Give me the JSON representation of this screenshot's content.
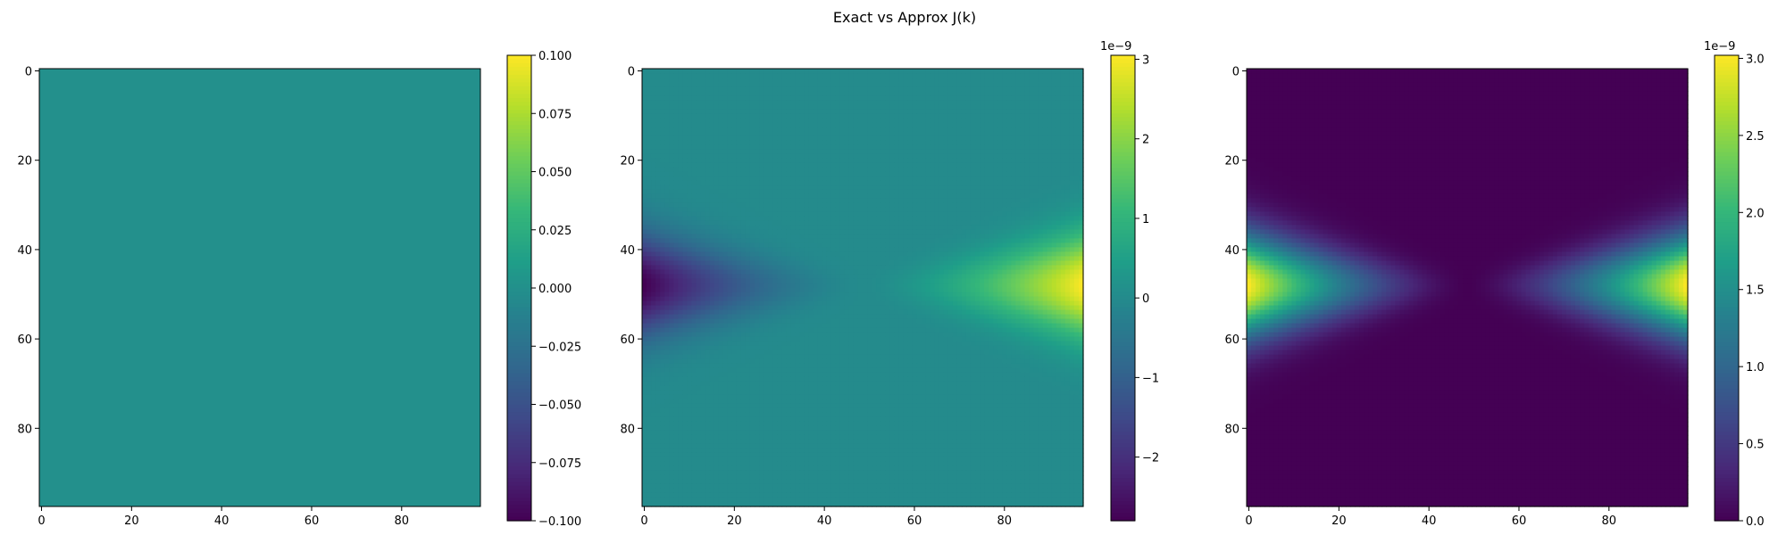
{
  "figure": {
    "suptitle": "Exact vs Approx J(k)"
  },
  "chart_data": [
    {
      "type": "heatmap",
      "grid_size": [
        98,
        98
      ],
      "x_ticks": [
        "0",
        "20",
        "40",
        "60",
        "80"
      ],
      "y_ticks": [
        "0",
        "20",
        "40",
        "60",
        "80"
      ],
      "colormap": "viridis",
      "field": "zero",
      "colorbar": {
        "min": -0.1,
        "max": 0.1,
        "ticks": [
          {
            "value": 0.1,
            "label": "0.100"
          },
          {
            "value": 0.075,
            "label": "0.075"
          },
          {
            "value": 0.05,
            "label": "0.050"
          },
          {
            "value": 0.025,
            "label": "0.025"
          },
          {
            "value": 0.0,
            "label": "0.000"
          },
          {
            "value": -0.025,
            "label": "−0.025"
          },
          {
            "value": -0.05,
            "label": "−0.050"
          },
          {
            "value": -0.075,
            "label": "−0.075"
          },
          {
            "value": -0.1,
            "label": "−0.100"
          }
        ],
        "offset_label": ""
      }
    },
    {
      "type": "heatmap",
      "grid_size": [
        98,
        98
      ],
      "x_ticks": [
        "0",
        "20",
        "40",
        "60",
        "80"
      ],
      "y_ticks": [
        "0",
        "20",
        "40",
        "60",
        "80"
      ],
      "colormap": "viridis",
      "field": "signed",
      "peak_row": 48,
      "peak_value": 3.0,
      "trough_value": -2.8,
      "colorbar": {
        "min": -2.8,
        "max": 3.05,
        "ticks": [
          {
            "value": 3,
            "label": "3"
          },
          {
            "value": 2,
            "label": "2"
          },
          {
            "value": 1,
            "label": "1"
          },
          {
            "value": 0,
            "label": "0"
          },
          {
            "value": -1,
            "label": "−1"
          },
          {
            "value": -2,
            "label": "−2"
          }
        ],
        "offset_label": "1e−9"
      }
    },
    {
      "type": "heatmap",
      "grid_size": [
        98,
        98
      ],
      "x_ticks": [
        "0",
        "20",
        "40",
        "60",
        "80"
      ],
      "y_ticks": [
        "0",
        "20",
        "40",
        "60",
        "80"
      ],
      "colormap": "viridis",
      "field": "absolute",
      "peak_row": 48,
      "peak_value": 3.0,
      "colorbar": {
        "min": 0,
        "max": 3.02,
        "ticks": [
          {
            "value": 3.0,
            "label": "3.0"
          },
          {
            "value": 2.5,
            "label": "2.5"
          },
          {
            "value": 2.0,
            "label": "2.0"
          },
          {
            "value": 1.5,
            "label": "1.5"
          },
          {
            "value": 1.0,
            "label": "1.0"
          },
          {
            "value": 0.5,
            "label": "0.5"
          },
          {
            "value": 0.0,
            "label": "0.0"
          }
        ],
        "offset_label": "1e−9"
      }
    }
  ]
}
